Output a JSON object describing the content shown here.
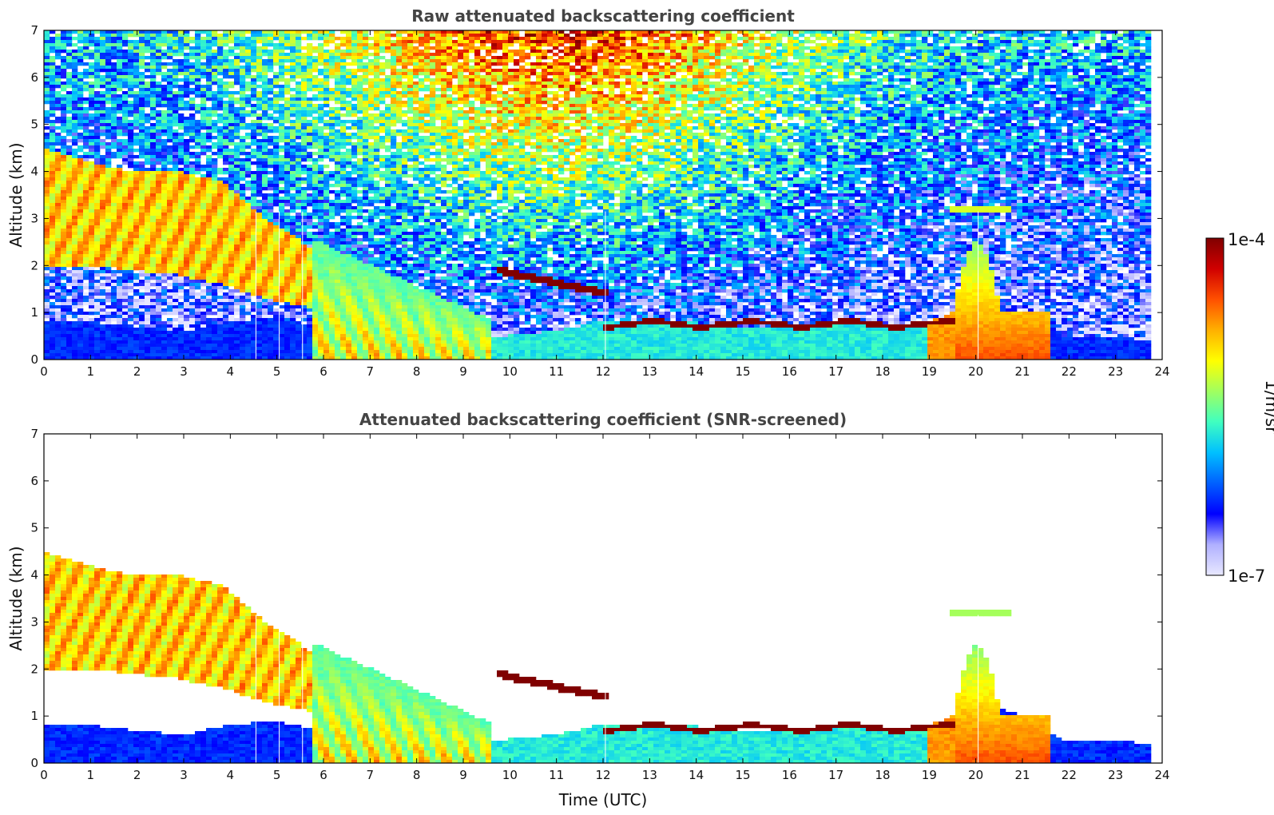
{
  "chart_data": [
    {
      "type": "heatmap",
      "title": "Raw attenuated backscattering coefficient",
      "xlabel": "",
      "ylabel": "Altitude (km)",
      "xlim": [
        0,
        24
      ],
      "ylim": [
        0,
        7
      ],
      "x_ticks": [
        "0",
        "1",
        "2",
        "3",
        "4",
        "5",
        "6",
        "7",
        "8",
        "9",
        "10",
        "11",
        "12",
        "13",
        "14",
        "15",
        "16",
        "17",
        "18",
        "19",
        "20",
        "21",
        "22",
        "23",
        "24"
      ],
      "y_ticks": [
        "0",
        "1",
        "2",
        "3",
        "4",
        "5",
        "6",
        "7"
      ],
      "data_end_hour": 23.8,
      "layers": [
        {
          "name": "boundary-layer",
          "start": 0,
          "end": 23.8,
          "top_km": [
            0.8,
            0.8,
            0.7,
            0.6,
            0.8,
            0.9,
            0.7,
            0.5,
            0.6,
            0.5,
            0.5,
            0.6,
            0.8,
            0.8,
            0.8,
            0.7,
            0.7,
            0.8,
            0.7,
            0.7,
            1.2,
            1.1,
            0.5,
            0.5,
            0.4
          ]
        },
        {
          "name": "aerosol-plume",
          "start": 0,
          "end": 5.7,
          "base_top_km": [
            [
              2.0,
              4.5
            ],
            [
              2.0,
              4.2
            ],
            [
              1.9,
              4.0
            ],
            [
              1.8,
              4.0
            ],
            [
              1.6,
              3.8
            ],
            [
              1.3,
              3.0
            ],
            [
              1.1,
              2.4
            ]
          ]
        },
        {
          "name": "cloud-layer-1",
          "start": 9.7,
          "end": 12.1,
          "altitude_km": [
            1.9,
            1.4
          ]
        },
        {
          "name": "cloud-layer-2",
          "start": 12.0,
          "end": 19.6,
          "altitude_km": [
            0.75,
            0.75
          ]
        },
        {
          "name": "cloud-layer-3",
          "start": 19.5,
          "end": 20.8,
          "altitude_km": [
            3.2,
            3.2
          ]
        }
      ]
    },
    {
      "type": "heatmap",
      "title": "Attenuated backscattering coefficient (SNR-screened)",
      "xlabel": "Time (UTC)",
      "ylabel": "Altitude (km)",
      "xlim": [
        0,
        24
      ],
      "ylim": [
        0,
        7
      ],
      "x_ticks": [
        "0",
        "1",
        "2",
        "3",
        "4",
        "5",
        "6",
        "7",
        "8",
        "9",
        "10",
        "11",
        "12",
        "13",
        "14",
        "15",
        "16",
        "17",
        "18",
        "19",
        "20",
        "21",
        "22",
        "23",
        "24"
      ],
      "y_ticks": [
        "0",
        "1",
        "2",
        "3",
        "4",
        "5",
        "6",
        "7"
      ],
      "screened": true
    }
  ],
  "colorbar": {
    "label": "1/m/sr",
    "max_label": "1e-4",
    "min_label": "1e-7",
    "colors": [
      "#e8e8ff",
      "#b0b0ff",
      "#0000ff",
      "#0060ff",
      "#00c0ff",
      "#40ffc0",
      "#a0ff60",
      "#ffff00",
      "#ffb000",
      "#ff5000",
      "#d00000",
      "#800000"
    ]
  }
}
